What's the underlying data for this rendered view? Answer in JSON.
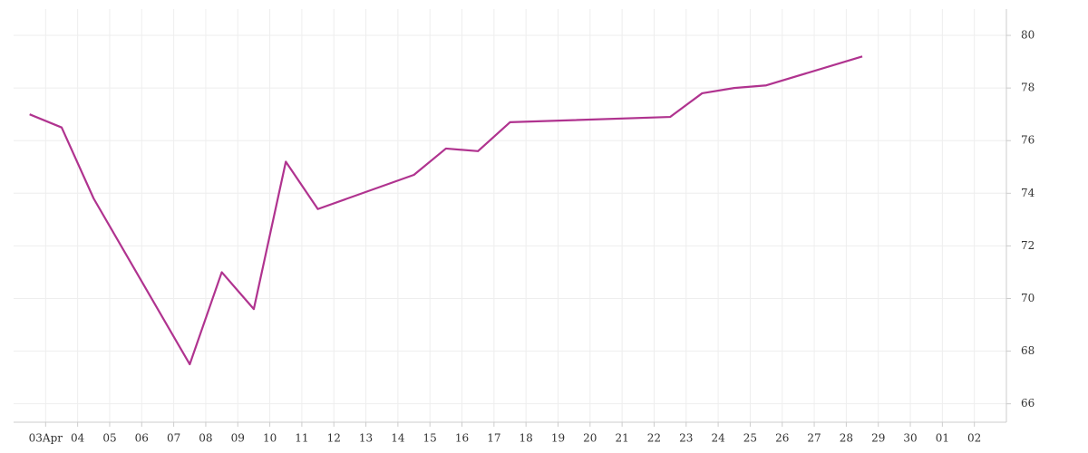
{
  "chart_data": {
    "type": "line",
    "x": [
      2.5,
      3.5,
      4.5,
      7.5,
      8.5,
      9.5,
      10.5,
      11.5,
      14.5,
      15.5,
      16.5,
      17.5,
      22.5,
      23.5,
      24.5,
      25.5,
      28.5
    ],
    "series": [
      {
        "color": "#b0338f",
        "values": [
          77.0,
          76.5,
          73.8,
          67.5,
          71.0,
          69.6,
          75.2,
          73.4,
          74.7,
          75.7,
          75.6,
          76.7,
          76.9,
          77.8,
          78.0,
          78.1,
          79.2
        ]
      }
    ],
    "xlim": [
      2,
      33
    ],
    "xticks": [
      {
        "value": 3,
        "label": "03Apr"
      },
      {
        "value": 4,
        "label": "04"
      },
      {
        "value": 5,
        "label": "05"
      },
      {
        "value": 6,
        "label": "06"
      },
      {
        "value": 7,
        "label": "07"
      },
      {
        "value": 8,
        "label": "08"
      },
      {
        "value": 9,
        "label": "09"
      },
      10,
      11,
      12,
      13,
      14,
      15,
      16,
      17,
      18,
      19,
      20,
      21,
      22,
      23,
      24,
      25,
      26,
      27,
      28,
      29,
      30,
      {
        "value": 31,
        "label": "01"
      },
      {
        "value": 32,
        "label": "02"
      }
    ],
    "ylim": [
      65.3,
      81
    ],
    "yticks": [
      66,
      68,
      70,
      72,
      74,
      76,
      78,
      80
    ],
    "grid": true
  }
}
